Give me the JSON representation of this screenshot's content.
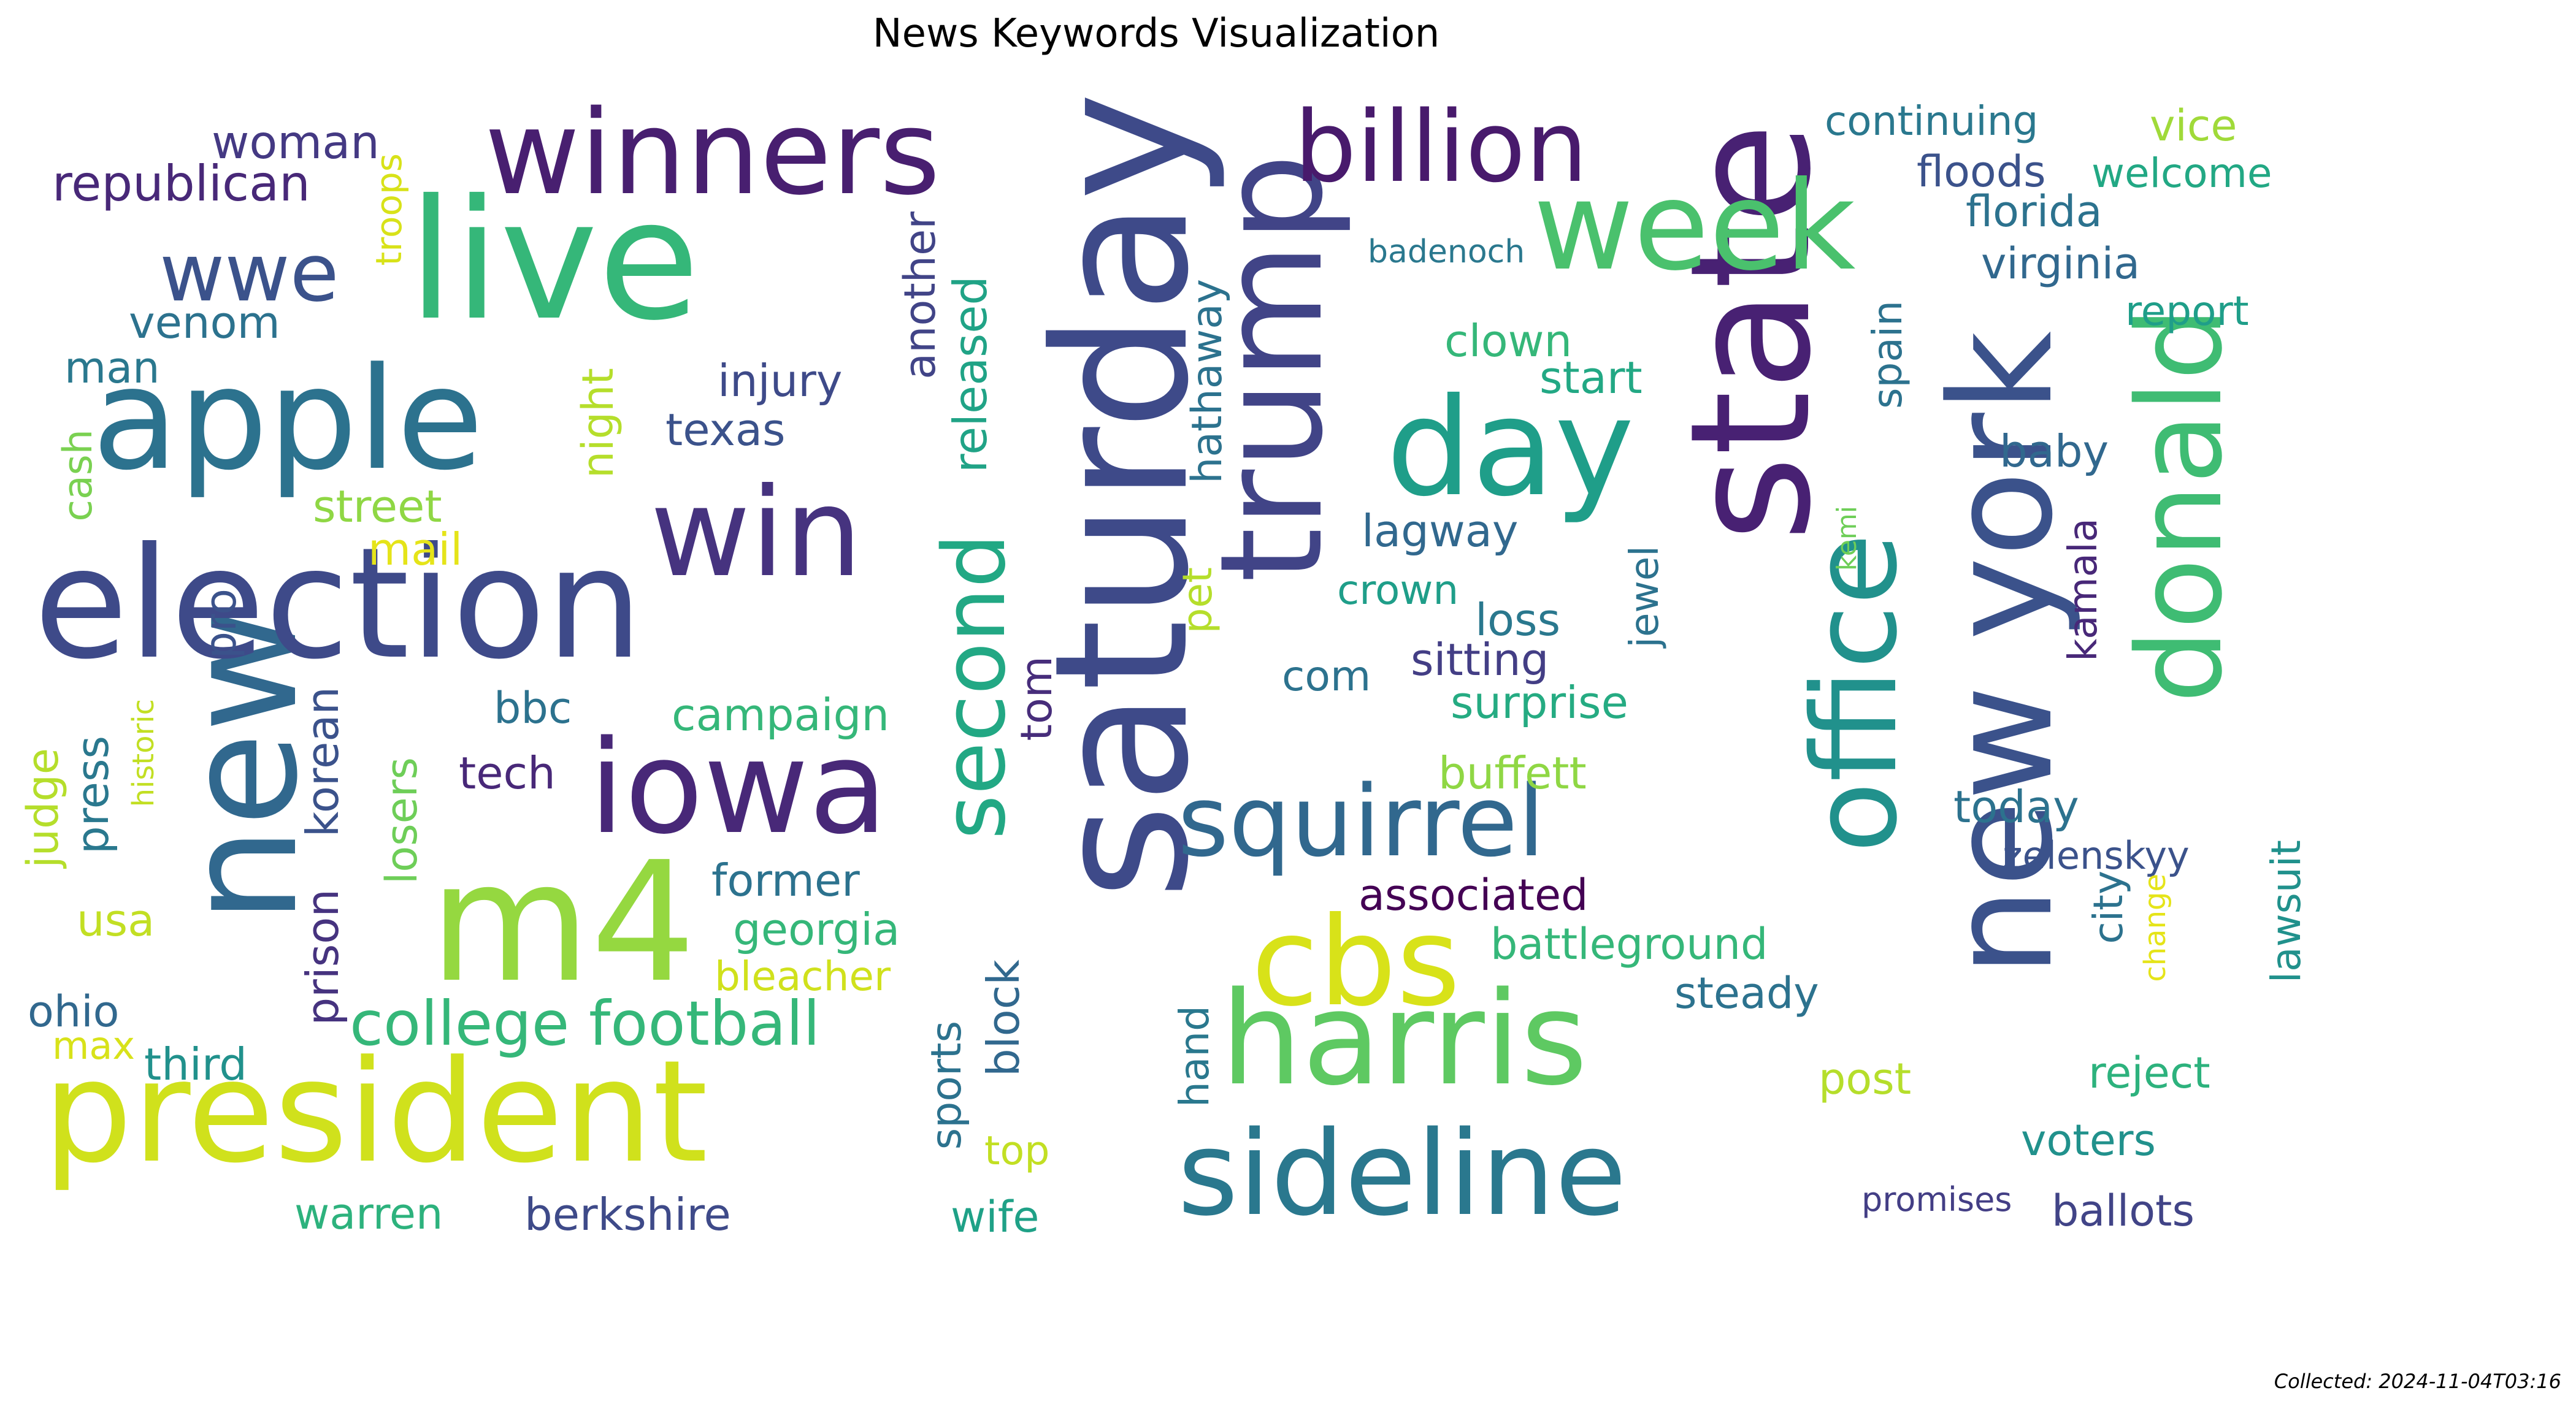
{
  "title": "News Keywords Visualization",
  "footer": "Collected: 2024-11-04T03:16",
  "palette": "viridis",
  "words": [
    {
      "text": "saturday",
      "color": "#3e4a89"
    },
    {
      "text": "state",
      "color": "#482173"
    },
    {
      "text": "trump",
      "color": "#414487"
    },
    {
      "text": "new",
      "color": "#31688e"
    },
    {
      "text": "new york",
      "color": "#3b528b"
    },
    {
      "text": "election",
      "color": "#3e4a89"
    },
    {
      "text": "president",
      "color": "#d0e11c"
    },
    {
      "text": "live",
      "color": "#35b779"
    },
    {
      "text": "harris",
      "color": "#5ec962"
    },
    {
      "text": "apple",
      "color": "#2c728e"
    },
    {
      "text": "winners",
      "color": "#481f70"
    },
    {
      "text": "office",
      "color": "#21918c"
    },
    {
      "text": "donald",
      "color": "#3fbc73"
    },
    {
      "text": "sideline",
      "color": "#2a788e"
    },
    {
      "text": "day",
      "color": "#1f9e89"
    },
    {
      "text": "week",
      "color": "#4ac16d"
    },
    {
      "text": "iowa",
      "color": "#482878"
    },
    {
      "text": "billion",
      "color": "#481a6c"
    },
    {
      "text": "win",
      "color": "#46337f"
    },
    {
      "text": "m4",
      "color": "#95d840"
    },
    {
      "text": "cbs",
      "color": "#d8e219"
    },
    {
      "text": "squirrel",
      "color": "#31688e"
    },
    {
      "text": "second",
      "color": "#22a884"
    },
    {
      "text": "wwe",
      "color": "#3b528b"
    },
    {
      "text": "college football",
      "color": "#35b779"
    },
    {
      "text": "republican",
      "color": "#482878"
    },
    {
      "text": "woman",
      "color": "#443983"
    },
    {
      "text": "troops",
      "color": "#d8e219"
    },
    {
      "text": "venom",
      "color": "#2c728e"
    },
    {
      "text": "man",
      "color": "#2a788e"
    },
    {
      "text": "cash",
      "color": "#7ad151"
    },
    {
      "text": "street",
      "color": "#8fd744"
    },
    {
      "text": "mail",
      "color": "#e5e419"
    },
    {
      "text": "night",
      "color": "#b5de2b"
    },
    {
      "text": "injury",
      "color": "#3e4a89"
    },
    {
      "text": "texas",
      "color": "#3b528b"
    },
    {
      "text": "another",
      "color": "#414487"
    },
    {
      "text": "released",
      "color": "#20a386"
    },
    {
      "text": "pro",
      "color": "#3b528b"
    },
    {
      "text": "bbc",
      "color": "#2c728e"
    },
    {
      "text": "campaign",
      "color": "#35b779"
    },
    {
      "text": "tech",
      "color": "#482878"
    },
    {
      "text": "historic",
      "color": "#c2df23"
    },
    {
      "text": "judge",
      "color": "#b5de2b"
    },
    {
      "text": "press",
      "color": "#2a788e"
    },
    {
      "text": "prison",
      "color": "#46337f"
    },
    {
      "text": "korean",
      "color": "#3b528b"
    },
    {
      "text": "losers",
      "color": "#6ece58"
    },
    {
      "text": "former",
      "color": "#2c728e"
    },
    {
      "text": "georgia",
      "color": "#35b779"
    },
    {
      "text": "bleacher",
      "color": "#d0e11c"
    },
    {
      "text": "usa",
      "color": "#c2df23"
    },
    {
      "text": "ohio",
      "color": "#31688e"
    },
    {
      "text": "max",
      "color": "#d8e219"
    },
    {
      "text": "third",
      "color": "#21918c"
    },
    {
      "text": "warren",
      "color": "#2db27d"
    },
    {
      "text": "berkshire",
      "color": "#3e4a89"
    },
    {
      "text": "tom",
      "color": "#472d7b"
    },
    {
      "text": "pet",
      "color": "#b5de2b"
    },
    {
      "text": "block",
      "color": "#31688e"
    },
    {
      "text": "sports",
      "color": "#2c728e"
    },
    {
      "text": "top",
      "color": "#c2df23"
    },
    {
      "text": "wife",
      "color": "#1fa187"
    },
    {
      "text": "hand",
      "color": "#2a788e"
    },
    {
      "text": "hathaway",
      "color": "#2c728e"
    },
    {
      "text": "clown",
      "color": "#35b779"
    },
    {
      "text": "start",
      "color": "#22a884"
    },
    {
      "text": "lagway",
      "color": "#31688e"
    },
    {
      "text": "crown",
      "color": "#1f9e89"
    },
    {
      "text": "loss",
      "color": "#2a788e"
    },
    {
      "text": "sitting",
      "color": "#433e85"
    },
    {
      "text": "com",
      "color": "#2c728e"
    },
    {
      "text": "surprise",
      "color": "#25ab82"
    },
    {
      "text": "buffett",
      "color": "#8fd744"
    },
    {
      "text": "associated",
      "color": "#440154"
    },
    {
      "text": "battleground",
      "color": "#35b779"
    },
    {
      "text": "steady",
      "color": "#2c728e"
    },
    {
      "text": "post",
      "color": "#b5de2b"
    },
    {
      "text": "jewel",
      "color": "#2c728e"
    },
    {
      "text": "kamala",
      "color": "#482878"
    },
    {
      "text": "kemi",
      "color": "#6ece58"
    },
    {
      "text": "spain",
      "color": "#2c728e"
    },
    {
      "text": "badenoch",
      "color": "#2a788e"
    },
    {
      "text": "continuing",
      "color": "#2a788e"
    },
    {
      "text": "floods",
      "color": "#3b528b"
    },
    {
      "text": "florida",
      "color": "#2c728e"
    },
    {
      "text": "virginia",
      "color": "#31688e"
    },
    {
      "text": "report",
      "color": "#1f9e89"
    },
    {
      "text": "vice",
      "color": "#a0da39"
    },
    {
      "text": "welcome",
      "color": "#22a884"
    },
    {
      "text": "baby",
      "color": "#31688e"
    },
    {
      "text": "today",
      "color": "#2c728e"
    },
    {
      "text": "zelenskyy",
      "color": "#3b528b"
    },
    {
      "text": "city",
      "color": "#2c728e"
    },
    {
      "text": "change",
      "color": "#e5e419"
    },
    {
      "text": "lawsuit",
      "color": "#21918c"
    },
    {
      "text": "reject",
      "color": "#2db27d"
    },
    {
      "text": "voters",
      "color": "#21918c"
    },
    {
      "text": "promises",
      "color": "#433e85"
    },
    {
      "text": "ballots",
      "color": "#414487"
    }
  ]
}
